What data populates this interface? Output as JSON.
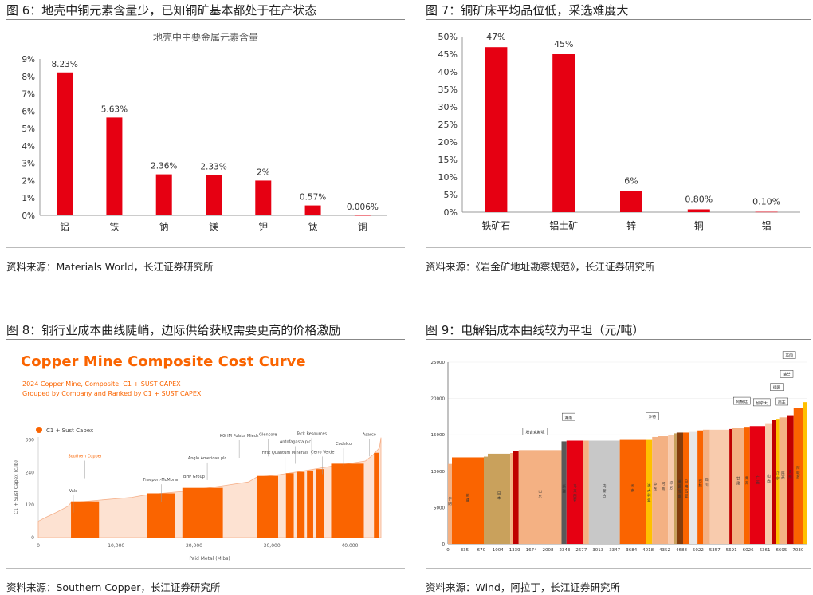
{
  "panels": [
    {
      "title": "图 6：地壳中铜元素含量少，已知铜矿基本都处于在产状态",
      "source": "资料来源：Materials World，长江证券研究所"
    },
    {
      "title": "图 7：铜矿床平均品位低，采选难度大",
      "source": "资料来源：《岩金矿地址勘察规范》，长江证券研究所"
    },
    {
      "title": "图 8：铜行业成本曲线陡峭，边际供给获取需要更高的价格激励",
      "source": "资料来源：Southern Copper，长江证券研究所"
    },
    {
      "title": "图 9：电解铝成本曲线较为平坦（元/吨）",
      "source": "资料来源：Wind，阿拉丁，长江证券研究所"
    }
  ],
  "colors": {
    "red": "#e60012",
    "orange": "#fa6400",
    "rule": "#888888"
  },
  "chart_data": [
    {
      "type": "bar",
      "title": "地壳中主要金属元素含量",
      "categories": [
        "铝",
        "铁",
        "钠",
        "镁",
        "钾",
        "钛",
        "铜"
      ],
      "values": [
        8.23,
        5.63,
        2.36,
        2.33,
        2,
        0.57,
        0.006
      ],
      "data_labels": [
        "8.23%",
        "5.63%",
        "2.36%",
        "2.33%",
        "2%",
        "0.57%",
        "0.006%"
      ],
      "y_ticks": [
        "0%",
        "1%",
        "2%",
        "3%",
        "4%",
        "5%",
        "6%",
        "7%",
        "8%",
        "9%"
      ],
      "ylim": [
        0,
        9
      ],
      "color": "#e60012"
    },
    {
      "type": "bar",
      "categories": [
        "铁矿石",
        "铝土矿",
        "锌",
        "铜",
        "铝"
      ],
      "values": [
        47,
        45,
        6,
        0.8,
        0.1
      ],
      "data_labels": [
        "47%",
        "45%",
        "6%",
        "0.80%",
        "0.10%"
      ],
      "y_ticks": [
        "0%",
        "5%",
        "10%",
        "15%",
        "20%",
        "25%",
        "30%",
        "35%",
        "40%",
        "45%",
        "50%"
      ],
      "ylim": [
        0,
        50
      ],
      "color": "#e60012"
    },
    {
      "type": "bar",
      "title": "Copper Mine Composite Cost Curve",
      "subtitle": [
        "2024 Copper Mine, Composite, C1 + SUST CAPEX",
        "Grouped by Company and Ranked by C1 + SUST CAPEX"
      ],
      "legend": "C1 + Sust Capex",
      "ylabel": "C1 + Sust Capex (c/lb)",
      "xlabel": "Paid Metal (Mlbs)",
      "y_ticks": [
        "0",
        "120",
        "240",
        "360"
      ],
      "x_ticks": [
        "0",
        "10,000",
        "20,000",
        "30,000",
        "40,000"
      ],
      "xlim": [
        0,
        44000
      ],
      "ylim": [
        0,
        370
      ],
      "highlight_bars": [
        {
          "x0": 4200,
          "x1": 7800,
          "y": 133
        },
        {
          "x0": 14000,
          "x1": 17500,
          "y": 163
        },
        {
          "x0": 18500,
          "x1": 23700,
          "y": 183
        },
        {
          "x0": 28100,
          "x1": 30800,
          "y": 227
        },
        {
          "x0": 31800,
          "x1": 32800,
          "y": 237
        },
        {
          "x0": 33200,
          "x1": 34200,
          "y": 242
        },
        {
          "x0": 34500,
          "x1": 35300,
          "y": 247
        },
        {
          "x0": 35700,
          "x1": 36700,
          "y": 252
        },
        {
          "x0": 37600,
          "x1": 41800,
          "y": 272
        },
        {
          "x0": 43100,
          "x1": 43700,
          "y": 312
        }
      ],
      "company_labels": [
        {
          "text": "Vale",
          "x": 4500,
          "y": 168
        },
        {
          "text": "Southern Copper",
          "x": 6000,
          "y": 295,
          "highlight": true
        },
        {
          "text": "Freeport-McMoran",
          "x": 15800,
          "y": 208
        },
        {
          "text": "BHP Group",
          "x": 20000,
          "y": 220
        },
        {
          "text": "Anglo American plc",
          "x": 21700,
          "y": 288
        },
        {
          "text": "KGHM Polska Miedz",
          "x": 25800,
          "y": 370
        },
        {
          "text": "Glencore",
          "x": 29500,
          "y": 375
        },
        {
          "text": "First Quantum Minerals",
          "x": 31700,
          "y": 308
        },
        {
          "text": "Antofagasta plc",
          "x": 33000,
          "y": 348
        },
        {
          "text": "Teck Resources",
          "x": 35100,
          "y": 378
        },
        {
          "text": "Cerro Verde",
          "x": 36500,
          "y": 310
        },
        {
          "text": "Codelco",
          "x": 39200,
          "y": 340
        },
        {
          "text": "Asarco",
          "x": 42500,
          "y": 375
        }
      ],
      "color": "#fa6400"
    },
    {
      "type": "bar",
      "ylim": [
        0,
        25000
      ],
      "xlim": [
        0,
        7200
      ],
      "y_ticks": [
        "0",
        "5000",
        "10000",
        "15000",
        "20000",
        "25000"
      ],
      "x_ticks": [
        "0",
        "335",
        "670",
        "1004",
        "1339",
        "1674",
        "2008",
        "2343",
        "2677",
        "3013",
        "3347",
        "3684",
        "4018",
        "4352",
        "4688",
        "5022",
        "5357",
        "5691",
        "6026",
        "6361",
        "6695",
        "7030"
      ],
      "segments": [
        {
          "label": "伊朗",
          "x0": 0,
          "x1": 80,
          "y": 11000,
          "color": "#f4b183"
        },
        {
          "label": "新疆",
          "x0": 80,
          "x1": 720,
          "y": 11900,
          "color": "#fa6400"
        },
        {
          "label": "",
          "x0": 720,
          "x1": 800,
          "y": 12000,
          "color": "#c9a15c"
        },
        {
          "label": "日本",
          "x0": 800,
          "x1": 1250,
          "y": 12400,
          "color": "#c9a15c"
        },
        {
          "label": "",
          "x0": 1250,
          "x1": 1300,
          "y": 12500,
          "color": "#f4b183"
        },
        {
          "label": "",
          "x0": 1300,
          "x1": 1420,
          "y": 12800,
          "color": "#c00000"
        },
        {
          "label": "山东",
          "x0": 1420,
          "x1": 2280,
          "y": 12900,
          "color": "#f4b183"
        },
        {
          "label": "新疆",
          "x0": 2280,
          "x1": 2380,
          "y": 14100,
          "color": "#595959"
        },
        {
          "label": "马来西亚",
          "x0": 2380,
          "x1": 2720,
          "y": 14200,
          "color": "#e60012"
        },
        {
          "label": "",
          "x0": 2720,
          "x1": 2830,
          "y": 14200,
          "color": "#f4b183"
        },
        {
          "label": "内蒙古",
          "x0": 2830,
          "x1": 3450,
          "y": 14200,
          "color": "#c8c8c8"
        },
        {
          "label": "云南",
          "x0": 3450,
          "x1": 3970,
          "y": 14300,
          "color": "#fa6400"
        },
        {
          "label": "澳大利亚",
          "x0": 3970,
          "x1": 4100,
          "y": 14300,
          "color": "#ffc000"
        },
        {
          "label": "中东",
          "x0": 4100,
          "x1": 4220,
          "y": 14700,
          "color": "#f4b183"
        },
        {
          "label": "河南",
          "x0": 4220,
          "x1": 4420,
          "y": 14800,
          "color": "#f4b183"
        },
        {
          "label": "印尼",
          "x0": 4420,
          "x1": 4530,
          "y": 15000,
          "color": "#f8cbad"
        },
        {
          "label": "",
          "x0": 4530,
          "x1": 4590,
          "y": 15200,
          "color": "#c9a15c"
        },
        {
          "label": "美国北部",
          "x0": 4590,
          "x1": 4720,
          "y": 15300,
          "color": "#843c0c"
        },
        {
          "label": "马来西亚",
          "x0": 4720,
          "x1": 4850,
          "y": 15300,
          "color": "#fa6400"
        },
        {
          "label": "",
          "x0": 4850,
          "x1": 5010,
          "y": 15400,
          "color": "#e7e6e6"
        },
        {
          "label": "巴林",
          "x0": 5010,
          "x1": 5120,
          "y": 15600,
          "color": "#fa6400"
        },
        {
          "label": "四川",
          "x0": 5120,
          "x1": 5260,
          "y": 15700,
          "color": "#f4b183"
        },
        {
          "label": "",
          "x0": 5260,
          "x1": 5650,
          "y": 15700,
          "color": "#f8cbad"
        },
        {
          "label": "",
          "x0": 5650,
          "x1": 5710,
          "y": 15800,
          "color": "#c00000"
        },
        {
          "label": "甘肃",
          "x0": 5710,
          "x1": 5940,
          "y": 16000,
          "color": "#f4b183"
        },
        {
          "label": "青海",
          "x0": 5940,
          "x1": 6060,
          "y": 16100,
          "color": "#fa6400"
        },
        {
          "label": "广西",
          "x0": 6060,
          "x1": 6370,
          "y": 16200,
          "color": "#e60012"
        },
        {
          "label": "山西",
          "x0": 6370,
          "x1": 6510,
          "y": 16600,
          "color": "#f8cbad"
        },
        {
          "label": "",
          "x0": 6510,
          "x1": 6580,
          "y": 17000,
          "color": "#c00000"
        },
        {
          "label": "辽宁",
          "x0": 6580,
          "x1": 6650,
          "y": 17200,
          "color": "#ffc000"
        },
        {
          "label": "陕西",
          "x0": 6650,
          "x1": 6800,
          "y": 17400,
          "color": "#f4b183"
        },
        {
          "label": "贵州",
          "x0": 6800,
          "x1": 6940,
          "y": 17700,
          "color": "#c00000"
        },
        {
          "label": "阿联酋",
          "x0": 6940,
          "x1": 7120,
          "y": 18700,
          "color": "#fa6400"
        },
        {
          "label": "",
          "x0": 7120,
          "x1": 7200,
          "y": 19500,
          "color": "#ffc000"
        }
      ],
      "callouts": [
        {
          "text": "塔吉克斯坦",
          "x": 1750,
          "y": 15200
        },
        {
          "text": "湖南",
          "x": 2420,
          "y": 17200
        },
        {
          "text": "沙特",
          "x": 4100,
          "y": 17300
        },
        {
          "text": "阿根廷",
          "x": 5900,
          "y": 19400
        },
        {
          "text": "加拿大",
          "x": 6300,
          "y": 19200
        },
        {
          "text": "南非",
          "x": 6700,
          "y": 19300
        },
        {
          "text": "德国",
          "x": 6600,
          "y": 21300
        },
        {
          "text": "荷兰",
          "x": 6800,
          "y": 23100
        },
        {
          "text": "英国",
          "x": 6850,
          "y": 25700
        }
      ]
    }
  ]
}
